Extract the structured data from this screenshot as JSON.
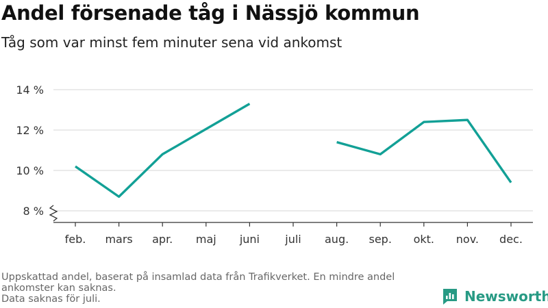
{
  "title": "Andel försenade tåg i Nässjö kommun",
  "subtitle": "Tåg som var minst fem minuter sena vid ankomst",
  "footnote": {
    "line1": "Uppskattad andel, baserat på insamlad data från Trafikverket. En mindre andel ankomster kan saknas.",
    "line2": "Data saknas för juli."
  },
  "brand": {
    "name": "Newsworthy",
    "icon": "newsworthy-logo-icon",
    "color": "#279a84"
  },
  "colors": {
    "line": "#12a096",
    "grid": "#dddddd",
    "axis": "#333333",
    "text": "#333333"
  },
  "chart_data": {
    "type": "line",
    "categories": [
      "feb.",
      "mars",
      "apr.",
      "maj",
      "juni",
      "juli",
      "aug.",
      "sep.",
      "okt.",
      "nov.",
      "dec."
    ],
    "series": [
      {
        "values": [
          10.2,
          8.7,
          10.8,
          12.05,
          13.3,
          null,
          11.4,
          10.8,
          12.4,
          12.5,
          9.4
        ]
      }
    ],
    "ylim": [
      8,
      14
    ],
    "yticks": [
      8,
      10,
      12,
      14
    ],
    "ytick_labels": [
      "8 %",
      "10 %",
      "12 %",
      "14 %"
    ],
    "y_axis_break": true,
    "grid": "horizontal",
    "xlabel": "",
    "ylabel": ""
  }
}
